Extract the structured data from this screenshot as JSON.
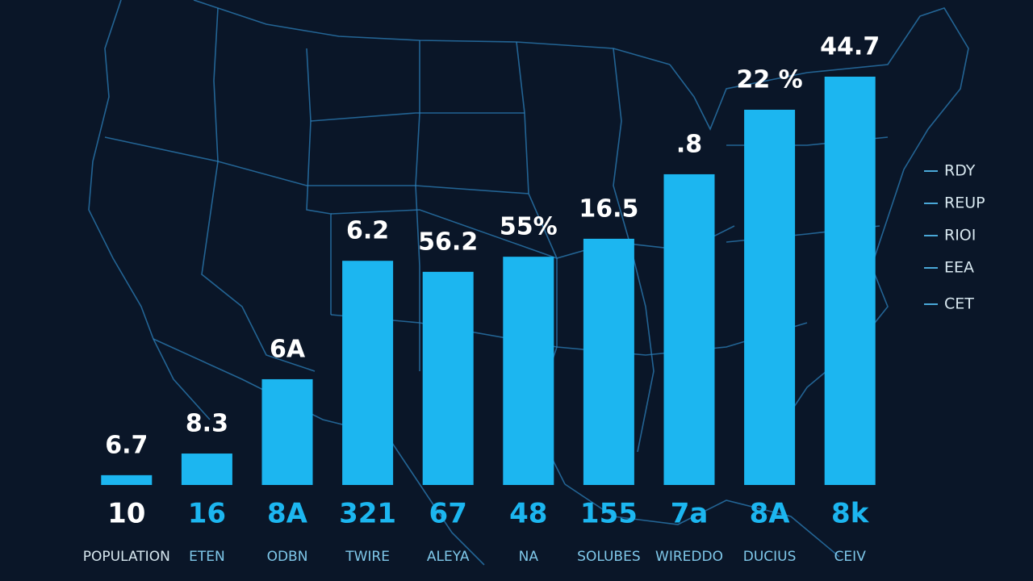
{
  "chart_data": {
    "type": "bar",
    "categories": [
      "POPULATION",
      "ETEN",
      "ODBN",
      "TWIRE",
      "ALEYA",
      "NA",
      "SOLUBES",
      "WIREDDO",
      "DUCIUS",
      "CEIV"
    ],
    "values": [
      2.4,
      7.7,
      25.9,
      54.9,
      52.2,
      55.9,
      60.3,
      76.1,
      91.9,
      100
    ],
    "ylim": [
      0,
      100
    ],
    "color": "#1cb6f0",
    "top_labels": [
      "6.7",
      "8.3",
      "6A",
      "6.2",
      "56.2",
      "55%",
      "16.5",
      ".8",
      "22 %",
      "44.7"
    ],
    "bottom_labels": [
      "10",
      "16",
      "8A",
      "321",
      "67",
      "48",
      "155",
      "7a",
      "8A",
      "8k"
    ],
    "legend_labels": [
      "RDY",
      "REUP",
      "RIOI",
      "EEA",
      "CET"
    ]
  }
}
